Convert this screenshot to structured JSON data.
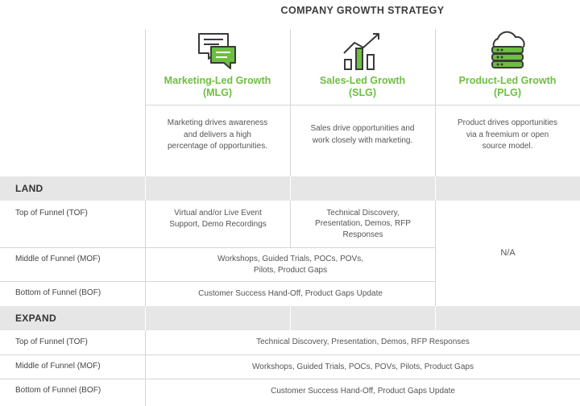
{
  "title": "COMPANY GROWTH STRATEGY",
  "colors": {
    "accent": "#6cbf3f",
    "band": "#e6e6e6",
    "grid": "#d6d6d6",
    "text": "#555555"
  },
  "columns": [
    {
      "icon": "chat-bubbles-icon",
      "name": "Marketing-Led Growth",
      "abbr": "(MLG)",
      "description": "Marketing drives awareness and delivers a high percentage of opportunities."
    },
    {
      "icon": "growth-chart-icon",
      "name": "Sales-Led Growth",
      "abbr": "(SLG)",
      "description": "Sales drive opportunities and work closely with marketing."
    },
    {
      "icon": "cloud-server-icon",
      "name": "Product-Led Growth",
      "abbr": "(PLG)",
      "description": "Product drives opportunities via a freemium or open source model."
    }
  ],
  "land": {
    "heading": "LAND",
    "rows": [
      {
        "label": "Top of Funnel (TOF)"
      },
      {
        "label": "Middle of Funnel (MOF)"
      },
      {
        "label": "Bottom of Funnel (BOF)"
      }
    ],
    "cells": {
      "tof_mlg": "Virtual and/or Live Event Support, Demo Recordings",
      "tof_slg": "Technical Discovery, Presentation, Demos, RFP Responses",
      "mof_mlg_slg": "Workshops, Guided Trials, POCs, POVs, Pilots, Product Gaps",
      "bof_mlg_slg": "Customer Success Hand-Off, Product Gaps Update",
      "plg": "N/A"
    }
  },
  "expand": {
    "heading": "EXPAND",
    "rows": [
      {
        "label": "Top of Funnel (TOF)",
        "value": "Technical Discovery, Presentation, Demos, RFP Responses"
      },
      {
        "label": "Middle of Funnel (MOF)",
        "value": "Workshops, Guided Trials, POCs, POVs, Pilots, Product Gaps"
      },
      {
        "label": "Bottom of Funnel (BOF)",
        "value": "Customer Success Hand-Off, Product Gaps Update"
      }
    ]
  }
}
